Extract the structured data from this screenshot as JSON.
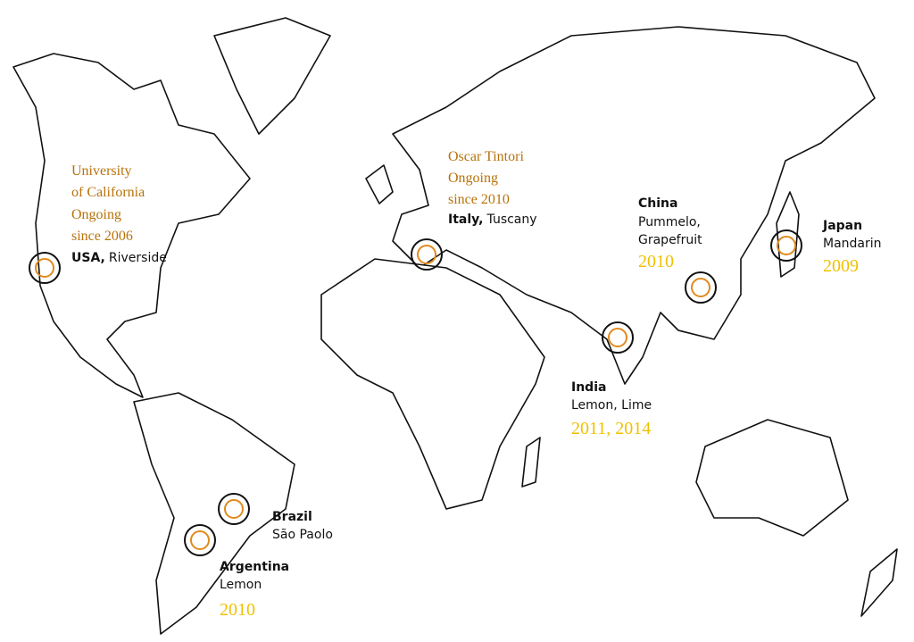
{
  "locations": [
    {
      "collaborator": [
        "University",
        "of California",
        "Ongoing",
        "since 2006"
      ],
      "country": "USA,",
      "place": "Riverside"
    },
    {
      "collaborator": [
        "Oscar Tintori",
        "Ongoing",
        "since 2010"
      ],
      "country": "Italy,",
      "place": "Tuscany"
    },
    {
      "country": "China",
      "fruits": [
        "Pummelo,",
        "Grapefruit"
      ],
      "year": "2010"
    },
    {
      "country": "Japan",
      "fruits": [
        "Mandarin"
      ],
      "year": "2009"
    },
    {
      "country": "India",
      "fruits": [
        "Lemon, Lime"
      ],
      "year": "2011, 2014"
    },
    {
      "country": "Brazil",
      "place": "São Paolo"
    },
    {
      "country": "Argentina",
      "fruits": [
        "Lemon"
      ],
      "year": "2010"
    }
  ]
}
